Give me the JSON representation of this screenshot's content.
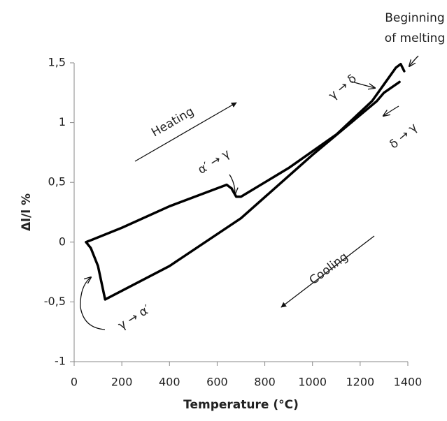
{
  "chart_data": {
    "type": "line",
    "xlabel": "Temperature (°C)",
    "ylabel": "Δl/l %",
    "xlim": [
      0,
      1400
    ],
    "xticks": [
      0,
      200,
      400,
      600,
      800,
      1000,
      1200,
      1400
    ],
    "ylim": [
      -1,
      1.5
    ],
    "yticks": [
      -1,
      {
        "value": -0.5,
        "label": "-0,5"
      },
      0,
      {
        "value": 0.5,
        "label": "0,5"
      },
      1,
      {
        "value": 1.5,
        "label": "1,5"
      }
    ],
    "series": [
      {
        "color": "#000000",
        "x": [
          50,
          200,
          400,
          600,
          640,
          660,
          680,
          700,
          900,
          1100,
          1250,
          1300,
          1350,
          1370,
          1385
        ],
        "values": [
          0,
          0.12,
          0.3,
          0.45,
          0.48,
          0.45,
          0.38,
          0.38,
          0.62,
          0.9,
          1.18,
          1.32,
          1.46,
          1.49,
          1.43
        ]
      },
      {
        "color": "#000000",
        "x": [
          1365,
          1300,
          1270,
          1000,
          700,
          400,
          130,
          100,
          70,
          50
        ],
        "values": [
          1.34,
          1.25,
          1.18,
          0.73,
          0.2,
          -0.2,
          -0.48,
          -0.2,
          -0.05,
          0
        ]
      }
    ],
    "annotations": [
      "Heating",
      "Cooling",
      "Beginning",
      "of melting",
      "α′ → γ",
      "γ → δ",
      "δ → γ",
      "γ → α′"
    ]
  }
}
